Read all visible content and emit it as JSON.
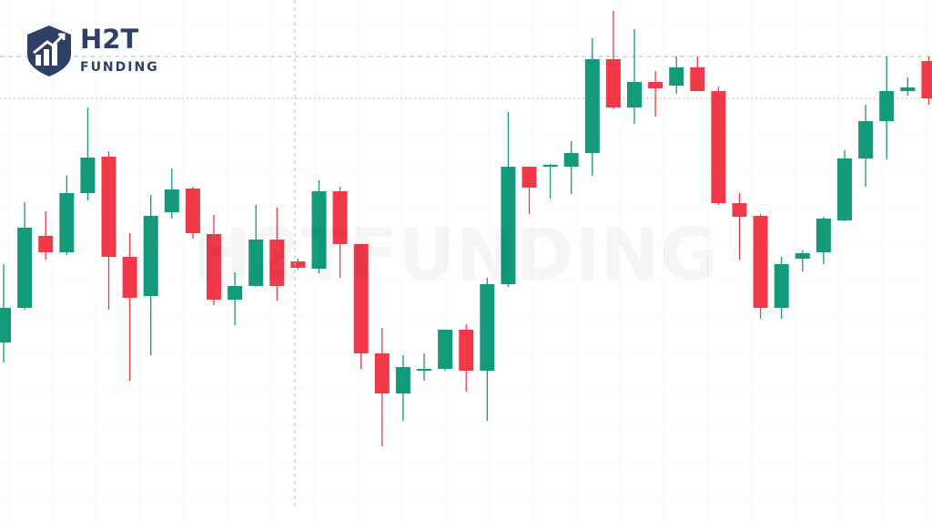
{
  "brand": {
    "name": "H2T",
    "sub": "FUNDING"
  },
  "watermark": "H2TFUNDING",
  "chart_data": {
    "type": "candlestick",
    "ylim": [
      0,
      572
    ],
    "up_color": "#139a7b",
    "down_color": "#f03a4a",
    "grid": true,
    "reference_lines": [
      {
        "value": 510,
        "style": "dashed"
      },
      {
        "value": 464,
        "style": "dotted"
      }
    ],
    "open": [
      196,
      234,
      313,
      295,
      360,
      400,
      290,
      247,
      339,
      365,
      315,
      243,
      258,
      309,
      285,
      277,
      362,
      304,
      184,
      140,
      165,
      167,
      210,
      165,
      260,
      389,
      389,
      389,
      404,
      507,
      454,
      482,
      478,
      498,
      472,
      349,
      335,
      234,
      288,
      295,
      330,
      398,
      439,
      472,
      505
    ],
    "high": [
      282,
      350,
      340,
      379,
      454,
      406,
      316,
      358,
      387,
      367,
      336,
      273,
      347,
      344,
      288,
      374,
      367,
      304,
      212,
      182,
      184,
      210,
      216,
      267,
      449,
      389,
      392,
      417,
      530,
      560,
      540,
      494,
      510,
      510,
      477,
      360,
      337,
      290,
      297,
      334,
      407,
      457,
      510,
      487,
      510
    ],
    "low": [
      174,
      232,
      287,
      292,
      352,
      232,
      154,
      182,
      332,
      310,
      237,
      215,
      257,
      242,
      276,
      272,
      267,
      167,
      82,
      110,
      154,
      165,
      142,
      110,
      257,
      337,
      354,
      359,
      379,
      452,
      436,
      444,
      469,
      472,
      347,
      287,
      222,
      222,
      274,
      282,
      329,
      367,
      397,
      467,
      457
    ],
    "close": [
      234,
      322,
      295,
      360,
      399,
      290,
      245,
      335,
      364,
      316,
      243,
      258,
      309,
      258,
      278,
      362,
      304,
      184,
      140,
      169,
      167,
      210,
      165,
      260,
      389,
      366,
      391,
      404,
      507,
      454,
      482,
      475,
      498,
      472,
      349,
      334,
      234,
      282,
      294,
      332,
      398,
      439,
      472,
      476,
      464
    ]
  }
}
